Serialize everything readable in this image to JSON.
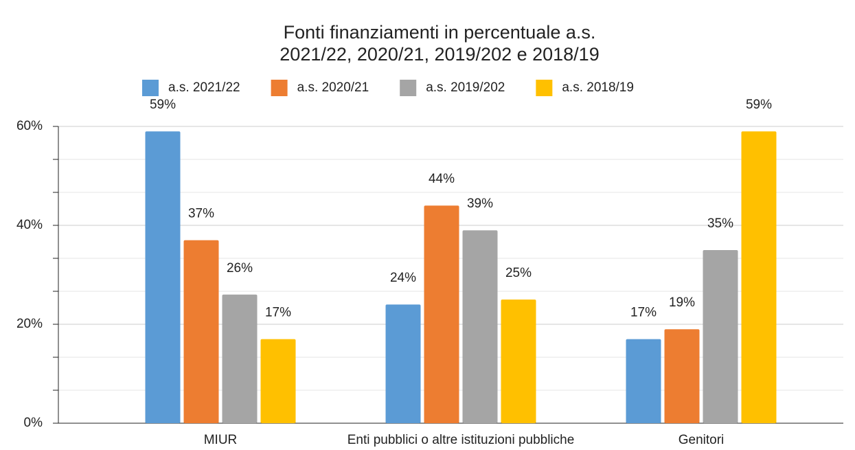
{
  "chart_data": {
    "type": "bar",
    "title_lines": [
      "Fonti finanziamenti in percentuale a.s.",
      "2021/22,  2020/21,  2019/202 e  2018/19"
    ],
    "categories": [
      "MIUR",
      "Enti pubblici o altre istituzioni pubbliche",
      "Genitori"
    ],
    "series": [
      {
        "name": "a.s. 2021/22",
        "color": "#5b9bd5",
        "values": [
          59,
          24,
          17
        ],
        "value_labels": [
          "59%",
          "24%",
          "17%"
        ]
      },
      {
        "name": "a.s. 2020/21",
        "color": "#ed7d31",
        "values": [
          37,
          44,
          19
        ],
        "value_labels": [
          "37%",
          "44%",
          "19%"
        ]
      },
      {
        "name": "a.s. 2019/202",
        "color": "#a5a5a5",
        "values": [
          26,
          39,
          35
        ],
        "value_labels": [
          "26%",
          "39%",
          "35%"
        ]
      },
      {
        "name": "a.s. 2018/19",
        "color": "#ffc000",
        "values": [
          17,
          25,
          59
        ],
        "value_labels": [
          "17%",
          "25%",
          "59%"
        ]
      }
    ],
    "ylim": [
      0,
      60
    ],
    "yticks": [
      {
        "value": 0,
        "label": "0%"
      },
      {
        "value": 20,
        "label": "20%"
      },
      {
        "value": 40,
        "label": "40%"
      },
      {
        "value": 60,
        "label": "60%"
      }
    ],
    "grid": true,
    "legend": "top"
  }
}
